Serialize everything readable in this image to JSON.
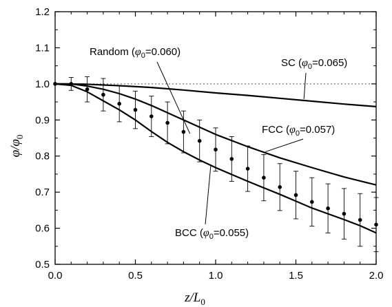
{
  "chart_data": {
    "type": "line",
    "title": "",
    "xlabel": "z/L",
    "xlabel_sub": "0",
    "ylabel": "φ/φ",
    "ylabel_sub": "0",
    "xlim": [
      0.0,
      2.0
    ],
    "ylim": [
      0.5,
      1.2
    ],
    "x_ticks": [
      "0.0",
      "0.5",
      "1.0",
      "1.5",
      "2.0"
    ],
    "y_ticks": [
      "0.5",
      "0.6",
      "0.7",
      "0.8",
      "0.9",
      "1.0",
      "1.1",
      "1.2"
    ],
    "reference_line": {
      "y": 1.0,
      "style": "dotted"
    },
    "series": [
      {
        "x": [
          0,
          0.2,
          0.4,
          0.6,
          0.8,
          1.0,
          1.2,
          1.4,
          1.6,
          1.8,
          2.0
        ],
        "y": [
          1.0,
          0.999,
          0.995,
          0.99,
          0.983,
          0.975,
          0.968,
          0.96,
          0.952,
          0.944,
          0.937
        ]
      },
      {
        "x": [
          0,
          0.1,
          0.2,
          0.3,
          0.4,
          0.5,
          0.6,
          0.7,
          0.8,
          0.9,
          1.0,
          1.2,
          1.4,
          1.6,
          1.8,
          2.0
        ],
        "y": [
          1.0,
          1.0,
          0.994,
          0.985,
          0.973,
          0.958,
          0.94,
          0.92,
          0.9,
          0.88,
          0.86,
          0.826,
          0.795,
          0.768,
          0.742,
          0.72
        ]
      },
      {
        "x": [
          0,
          0.1,
          0.2,
          0.3,
          0.4,
          0.5,
          0.6,
          0.7,
          0.8,
          0.9,
          1.0,
          1.1,
          1.2,
          1.3,
          1.4,
          1.5,
          1.6,
          1.7,
          1.8,
          1.9,
          2.0
        ],
        "y": [
          1.0,
          0.996,
          0.978,
          0.953,
          0.928,
          0.9,
          0.868,
          0.838,
          0.812,
          0.789,
          0.768,
          0.749,
          0.73,
          0.712,
          0.694,
          0.675,
          0.656,
          0.64,
          0.624,
          0.607,
          0.587
        ]
      },
      {
        "x": [
          0,
          0.1,
          0.2,
          0.3,
          0.4,
          0.5,
          0.6,
          0.7,
          0.8,
          0.9,
          1.0,
          1.1,
          1.2,
          1.3,
          1.4,
          1.5,
          1.6,
          1.7,
          1.8,
          1.9,
          2.0
        ],
        "y": [
          1.0,
          1.0,
          0.985,
          0.97,
          0.945,
          0.928,
          0.91,
          0.892,
          0.867,
          0.842,
          0.818,
          0.792,
          0.765,
          0.74,
          0.714,
          0.692,
          0.673,
          0.655,
          0.64,
          0.623,
          0.61
        ],
        "yerr": [
          0.0,
          0.018,
          0.035,
          0.045,
          0.05,
          0.052,
          0.056,
          0.058,
          0.058,
          0.058,
          0.06,
          0.062,
          0.063,
          0.064,
          0.065,
          0.066,
          0.067,
          0.068,
          0.07,
          0.073,
          0.075
        ]
      }
    ],
    "annotations": [
      {
        "text_pre": "Random (",
        "italic": "φ",
        "sub": "0",
        "text_post": "=0.060)",
        "target": [
          0.84,
          0.862
        ]
      },
      {
        "text_pre": "SC (",
        "italic": "φ",
        "sub": "0",
        "text_post": "=0.065)",
        "target": [
          1.55,
          0.958
        ]
      },
      {
        "text_pre": "FCC (",
        "italic": "φ",
        "sub": "0",
        "text_post": "=0.057)",
        "target": [
          1.31,
          0.812
        ]
      },
      {
        "text_pre": "BCC (",
        "italic": "φ",
        "sub": "0",
        "text_post": "=0.055)",
        "target": [
          0.97,
          0.775
        ]
      }
    ]
  }
}
